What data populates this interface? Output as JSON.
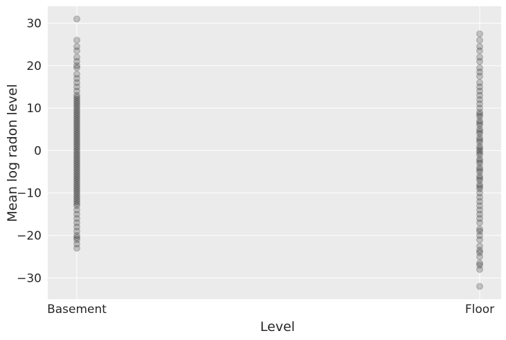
{
  "chart_data": {
    "type": "scatter",
    "title": "",
    "xlabel": "Level",
    "ylabel": "Mean log radon level",
    "categories": [
      "Basement",
      "Floor"
    ],
    "ylim": [
      -35,
      34
    ],
    "yticks": [
      30,
      20,
      10,
      0,
      -10,
      -20,
      -30
    ],
    "ytick_labels": [
      "30",
      "20",
      "10",
      "0",
      "−10",
      "−20",
      "−30"
    ],
    "grid": true,
    "background": "#ebebeb",
    "grid_color": "#ffffff",
    "point_color": "#000000",
    "point_alpha": 0.2,
    "series": [
      {
        "category": "Basement",
        "values": [
          31,
          26,
          24.5,
          23.5,
          22,
          21,
          20,
          19.5,
          18,
          17,
          16,
          15,
          14,
          13,
          12.5,
          12,
          11.5,
          11,
          10.5,
          10,
          9.5,
          9,
          8.5,
          8,
          7.5,
          7,
          6.5,
          6,
          5.5,
          5,
          4.5,
          4,
          3.5,
          3,
          2.5,
          2,
          1.5,
          1,
          0.5,
          0,
          -0.5,
          -1,
          -1.5,
          -2,
          -2.5,
          -3,
          -3.5,
          -4,
          -4.5,
          -5,
          -5.5,
          -6,
          -6.5,
          -7,
          -7.5,
          -8,
          -8.5,
          -9,
          -9.5,
          -10,
          -10.5,
          -11,
          -11.5,
          -12,
          -12.5,
          -13,
          -14,
          -15,
          -16,
          -17,
          -18,
          -19,
          -20,
          -20.5,
          -21,
          -22,
          -23
        ]
      },
      {
        "category": "Floor",
        "values": [
          27.5,
          26,
          24.5,
          23.5,
          22,
          21,
          19.5,
          18.5,
          17.5,
          16,
          15,
          14,
          13,
          12,
          11,
          10,
          9,
          8.5,
          8,
          7,
          6.5,
          6,
          5,
          4.5,
          4,
          3,
          2.5,
          2,
          1,
          0.5,
          0,
          -0.5,
          -1,
          -2,
          -2.5,
          -3,
          -4,
          -4.5,
          -5,
          -6,
          -6.5,
          -7,
          -8,
          -8.5,
          -9,
          -10,
          -11,
          -12,
          -13,
          -14,
          -15,
          -16,
          -17,
          -18.5,
          -19,
          -20,
          -21,
          -22.5,
          -23.5,
          -24,
          -25,
          -26.5,
          -27,
          -28,
          -32
        ]
      }
    ]
  }
}
